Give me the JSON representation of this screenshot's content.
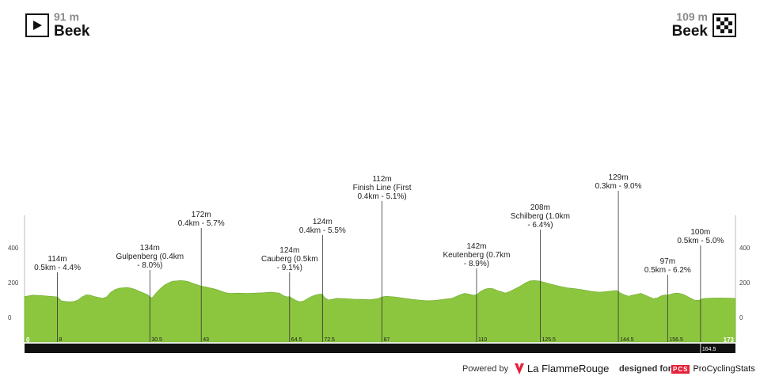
{
  "start": {
    "altitude": "91 m",
    "name": "Beek",
    "icon": "play-icon"
  },
  "finish": {
    "altitude": "109 m",
    "name": "Beek",
    "icon": "checkered-flag-icon"
  },
  "footer": {
    "powered_by": "Powered by",
    "brand": "La FlammeRouge",
    "designed_for": "designed for",
    "pcs_badge": "PCS",
    "pcs_name": "ProCyclingStats"
  },
  "chart_data": {
    "type": "area",
    "xlim": [
      0,
      173
    ],
    "ylim": [
      0,
      400
    ],
    "yticks": [
      0,
      200,
      400
    ],
    "fill_color": "#8cc63f",
    "bar_color": "#111111",
    "profile": [
      [
        0,
        120
      ],
      [
        2,
        128
      ],
      [
        4,
        126
      ],
      [
        6,
        122
      ],
      [
        8,
        118
      ],
      [
        9,
        95
      ],
      [
        10,
        92
      ],
      [
        11,
        90
      ],
      [
        12,
        92
      ],
      [
        13,
        100
      ],
      [
        14,
        118
      ],
      [
        15,
        130
      ],
      [
        16,
        128
      ],
      [
        17,
        120
      ],
      [
        18,
        115
      ],
      [
        19,
        110
      ],
      [
        20,
        118
      ],
      [
        21,
        145
      ],
      [
        22,
        160
      ],
      [
        23,
        168
      ],
      [
        24,
        170
      ],
      [
        25,
        172
      ],
      [
        26,
        168
      ],
      [
        27,
        160
      ],
      [
        28,
        150
      ],
      [
        29,
        140
      ],
      [
        30,
        130
      ],
      [
        30.5,
        118
      ],
      [
        31,
        112
      ],
      [
        32,
        140
      ],
      [
        33,
        165
      ],
      [
        34,
        185
      ],
      [
        35,
        198
      ],
      [
        36,
        208
      ],
      [
        37,
        210
      ],
      [
        38,
        212
      ],
      [
        39,
        210
      ],
      [
        40,
        205
      ],
      [
        41,
        196
      ],
      [
        42,
        188
      ],
      [
        43,
        180
      ],
      [
        44,
        176
      ],
      [
        45,
        170
      ],
      [
        46,
        165
      ],
      [
        47,
        158
      ],
      [
        48,
        150
      ],
      [
        49,
        142
      ],
      [
        50,
        138
      ],
      [
        52,
        140
      ],
      [
        54,
        138
      ],
      [
        56,
        140
      ],
      [
        58,
        142
      ],
      [
        60,
        145
      ],
      [
        62,
        140
      ],
      [
        63,
        125
      ],
      [
        64,
        118
      ],
      [
        64.5,
        120
      ],
      [
        65,
        112
      ],
      [
        66,
        98
      ],
      [
        67,
        90
      ],
      [
        68,
        95
      ],
      [
        69,
        110
      ],
      [
        70,
        122
      ],
      [
        71,
        130
      ],
      [
        72,
        135
      ],
      [
        72.5,
        132
      ],
      [
        73,
        115
      ],
      [
        74,
        100
      ],
      [
        75,
        105
      ],
      [
        76,
        110
      ],
      [
        78,
        108
      ],
      [
        80,
        105
      ],
      [
        82,
        104
      ],
      [
        84,
        102
      ],
      [
        86,
        108
      ],
      [
        87,
        118
      ],
      [
        88,
        122
      ],
      [
        90,
        118
      ],
      [
        92,
        112
      ],
      [
        94,
        105
      ],
      [
        96,
        100
      ],
      [
        98,
        96
      ],
      [
        100,
        98
      ],
      [
        102,
        104
      ],
      [
        104,
        110
      ],
      [
        106,
        130
      ],
      [
        107,
        138
      ],
      [
        108,
        135
      ],
      [
        109,
        128
      ],
      [
        110,
        130
      ],
      [
        111,
        150
      ],
      [
        112,
        162
      ],
      [
        113,
        168
      ],
      [
        114,
        165
      ],
      [
        115,
        155
      ],
      [
        116,
        148
      ],
      [
        117,
        140
      ],
      [
        118,
        148
      ],
      [
        120,
        172
      ],
      [
        122,
        200
      ],
      [
        123,
        210
      ],
      [
        124,
        212
      ],
      [
        125,
        210
      ],
      [
        125.5,
        208
      ],
      [
        126,
        205
      ],
      [
        128,
        192
      ],
      [
        130,
        180
      ],
      [
        132,
        170
      ],
      [
        134,
        165
      ],
      [
        136,
        158
      ],
      [
        138,
        150
      ],
      [
        140,
        145
      ],
      [
        142,
        150
      ],
      [
        144,
        155
      ],
      [
        144.5,
        150
      ],
      [
        145,
        140
      ],
      [
        146,
        130
      ],
      [
        147,
        122
      ],
      [
        148,
        128
      ],
      [
        150,
        138
      ],
      [
        151,
        128
      ],
      [
        152,
        118
      ],
      [
        153,
        108
      ],
      [
        154,
        112
      ],
      [
        155,
        125
      ],
      [
        156,
        130
      ],
      [
        156.5,
        128
      ],
      [
        157,
        132
      ],
      [
        158,
        138
      ],
      [
        159,
        140
      ],
      [
        160,
        135
      ],
      [
        161,
        125
      ],
      [
        162,
        112
      ],
      [
        163,
        100
      ],
      [
        164,
        98
      ],
      [
        164.5,
        102
      ],
      [
        165,
        108
      ],
      [
        166,
        110
      ],
      [
        168,
        112
      ],
      [
        170,
        112
      ],
      [
        173,
        110
      ]
    ],
    "climbs": [
      {
        "km": 8,
        "alt_line": "114m",
        "lines": [
          "0.5km - 4.4%"
        ]
      },
      {
        "km": 30.5,
        "alt_line": "134m",
        "lines": [
          "Gulpenberg (0.4km",
          "- 8.0%)"
        ]
      },
      {
        "km": 43,
        "alt_line": "172m",
        "lines": [
          "0.4km - 5.7%"
        ]
      },
      {
        "km": 64.5,
        "alt_line": "124m",
        "lines": [
          "Cauberg (0.5km",
          "- 9.1%)"
        ]
      },
      {
        "km": 72.5,
        "alt_line": "124m",
        "lines": [
          "0.4km - 5.5%"
        ]
      },
      {
        "km": 87,
        "alt_line": "112m",
        "lines": [
          "Finish Line (First",
          "0.4km - 5.1%)"
        ]
      },
      {
        "km": 110,
        "alt_line": "142m",
        "lines": [
          "Keutenberg (0.7km",
          "- 8.9%)"
        ]
      },
      {
        "km": 125.5,
        "alt_line": "208m",
        "lines": [
          "Schilberg (1.0km",
          "- 6.4%)"
        ]
      },
      {
        "km": 144.5,
        "alt_line": "129m",
        "lines": [
          "0.3km - 9.0%"
        ]
      },
      {
        "km": 156.5,
        "alt_line": "97m",
        "lines": [
          "0.5km - 6.2%"
        ]
      },
      {
        "km": 164.5,
        "alt_line": "100m",
        "lines": [
          "0.5km - 5.0%"
        ]
      }
    ],
    "km_markers": [
      "0",
      "8",
      "30.5",
      "43",
      "64.5",
      "72.5",
      "87",
      "110",
      "125.5",
      "144.5",
      "156.5",
      "173",
      "164.5"
    ]
  }
}
